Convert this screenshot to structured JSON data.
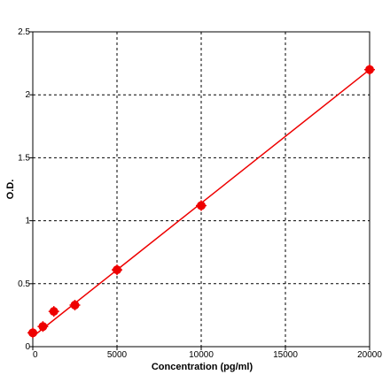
{
  "chart_data": {
    "type": "scatter",
    "title": "",
    "xlabel": "Concentration (pg/ml)",
    "ylabel": "O.D.",
    "xlim": [
      0,
      20000
    ],
    "ylim": [
      0,
      2.5
    ],
    "x_ticks": [
      "0",
      "5000",
      "10000",
      "15000",
      "20000"
    ],
    "y_ticks": [
      "0",
      "0.5",
      "1",
      "1.5",
      "2",
      "2.5"
    ],
    "grid": true,
    "series": [
      {
        "x": [
          0,
          600,
          1250,
          2500,
          5000,
          10000,
          20000
        ],
        "values": [
          0.11,
          0.16,
          0.28,
          0.33,
          0.61,
          1.12,
          2.2
        ]
      }
    ],
    "fit_line": {
      "x": [
        0,
        20000
      ],
      "y": [
        0.08,
        2.2
      ]
    },
    "colors": {
      "series": "#ee0000",
      "grid": "#000000",
      "axis": "#000000"
    }
  }
}
